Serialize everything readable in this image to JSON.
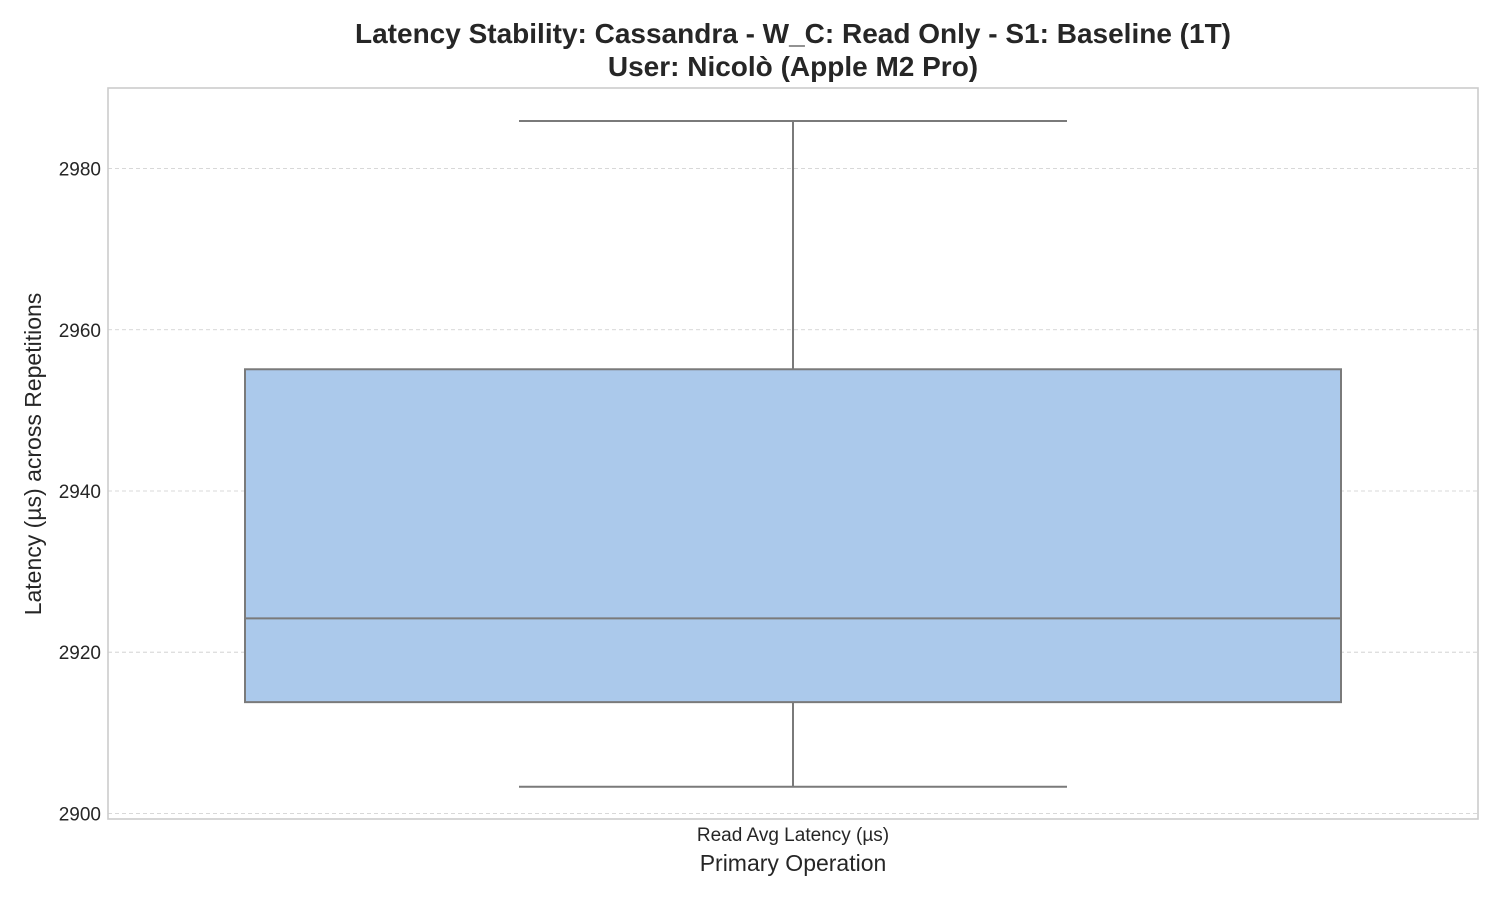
{
  "chart_data": {
    "type": "box",
    "title": "Latency Stability: Cassandra - W_C: Read Only - S1: Baseline (1T)",
    "subtitle": "User: Nicolò (Apple M2 Pro)",
    "xlabel": "Primary Operation",
    "ylabel": "Latency (µs) across Repetitions",
    "categories": [
      "Read Avg Latency (µs)"
    ],
    "boxes": [
      {
        "category": "Read Avg Latency (µs)",
        "whisker_low": 2903.3,
        "q1": 2913.8,
        "median": 2924.2,
        "q3": 2955.1,
        "whisker_high": 2985.9
      }
    ],
    "ylim": [
      2899.3,
      2990.0
    ],
    "yticks": [
      2900,
      2920,
      2940,
      2960,
      2980
    ],
    "grid": true,
    "colors": {
      "box_fill": "#abc9eb",
      "box_edge": "#7a7a7a",
      "grid": "#cccccc",
      "frame": "#cccccc",
      "text": "#262626"
    }
  }
}
